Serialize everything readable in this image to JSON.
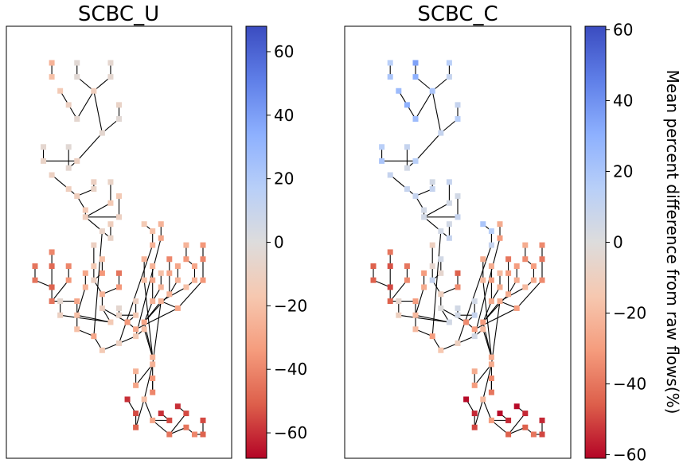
{
  "chart_data": [
    {
      "type": "scatter",
      "title": "SCBC_U",
      "xlabel": "",
      "ylabel": "",
      "grid": false,
      "colorbar": {
        "cmap": "coolwarm",
        "vmin": -68,
        "vmax": 68,
        "ticks": [
          -60,
          -40,
          -20,
          0,
          20,
          40,
          60
        ],
        "tick_labels": [
          "−60",
          "−40",
          "−20",
          "0",
          "20",
          "40",
          "60"
        ],
        "label": ""
      },
      "edges": [
        [
          "n1",
          "n2"
        ],
        [
          "n3",
          "n4"
        ],
        [
          "n5",
          "n6"
        ],
        [
          "n6",
          "n8"
        ],
        [
          "n4",
          "n8"
        ],
        [
          "n7",
          "n9"
        ],
        [
          "n9",
          "n10"
        ],
        [
          "n10",
          "n8"
        ],
        [
          "n8",
          "n13"
        ],
        [
          "n11",
          "n12"
        ],
        [
          "n12",
          "n13"
        ],
        [
          "n14",
          "n15"
        ],
        [
          "n15",
          "n16"
        ],
        [
          "n16",
          "n13"
        ],
        [
          "n17",
          "n18"
        ],
        [
          "n18",
          "n16"
        ],
        [
          "n19",
          "n20"
        ],
        [
          "n20",
          "n22"
        ],
        [
          "n21",
          "n23"
        ],
        [
          "n23",
          "n22"
        ],
        [
          "n22",
          "n24"
        ],
        [
          "n24",
          "n25"
        ],
        [
          "n26",
          "n27"
        ],
        [
          "n27",
          "n25"
        ],
        [
          "n28",
          "n29"
        ],
        [
          "n29",
          "n25"
        ],
        [
          "n25",
          "n30"
        ],
        [
          "n31",
          "n32"
        ],
        [
          "n32",
          "n30"
        ],
        [
          "n33",
          "n34"
        ],
        [
          "n35",
          "n36"
        ],
        [
          "n36",
          "n37"
        ],
        [
          "n34",
          "n37"
        ],
        [
          "n37",
          "n38"
        ],
        [
          "n39",
          "n40"
        ],
        [
          "n40",
          "n38"
        ],
        [
          "n38",
          "n41"
        ],
        [
          "n41",
          "n42"
        ],
        [
          "n43",
          "n44"
        ],
        [
          "n44",
          "n42"
        ],
        [
          "n45",
          "n46"
        ],
        [
          "n46",
          "n47"
        ],
        [
          "n48",
          "n49"
        ],
        [
          "n49",
          "n47"
        ],
        [
          "n47",
          "n50"
        ],
        [
          "n51",
          "n52"
        ],
        [
          "n52",
          "n50"
        ],
        [
          "n50",
          "n53"
        ],
        [
          "n54",
          "n55"
        ],
        [
          "n56",
          "n57"
        ],
        [
          "n57",
          "n55"
        ],
        [
          "n55",
          "n58"
        ],
        [
          "n58",
          "n53"
        ],
        [
          "n53",
          "n59"
        ],
        [
          "n60",
          "n61"
        ],
        [
          "n61",
          "n59"
        ],
        [
          "n59",
          "n42"
        ],
        [
          "n42",
          "n62"
        ],
        [
          "n62",
          "n63"
        ],
        [
          "n30",
          "n63"
        ],
        [
          "n63",
          "n64"
        ],
        [
          "n64",
          "n65"
        ],
        [
          "n66",
          "n67"
        ],
        [
          "n67",
          "n68"
        ],
        [
          "n68",
          "n65"
        ],
        [
          "n65",
          "n69"
        ],
        [
          "n70",
          "n71"
        ],
        [
          "n71",
          "n69"
        ],
        [
          "n69",
          "n72"
        ],
        [
          "n72",
          "n73"
        ],
        [
          "n74",
          "n75"
        ],
        [
          "n75",
          "n73"
        ],
        [
          "n76",
          "n77"
        ],
        [
          "n77",
          "n78"
        ],
        [
          "n79",
          "n80"
        ],
        [
          "n80",
          "n78"
        ],
        [
          "n78",
          "n81"
        ],
        [
          "n73",
          "n81"
        ],
        [
          "n82",
          "n83"
        ],
        [
          "n83",
          "n84"
        ],
        [
          "n84",
          "n81"
        ],
        [
          "n85",
          "n86"
        ],
        [
          "n86",
          "n84"
        ],
        [
          "n87",
          "n88"
        ],
        [
          "n88",
          "n89"
        ],
        [
          "n89",
          "n90"
        ],
        [
          "n90",
          "n91"
        ],
        [
          "n91",
          "n92"
        ],
        [
          "n93",
          "n94"
        ],
        [
          "n94",
          "n95"
        ],
        [
          "n95",
          "n96"
        ],
        [
          "n96",
          "n92"
        ],
        [
          "n97",
          "n98"
        ],
        [
          "n98",
          "n96"
        ],
        [
          "n81",
          "n92"
        ],
        [
          "n92",
          "n99"
        ],
        [
          "n100",
          "n101"
        ],
        [
          "n101",
          "n99"
        ],
        [
          "n102",
          "n103"
        ],
        [
          "n103",
          "n99"
        ],
        [
          "n99",
          "n104"
        ],
        [
          "n105",
          "n106"
        ],
        [
          "n106",
          "n107"
        ],
        [
          "n107",
          "n104"
        ],
        [
          "n104",
          "n108"
        ],
        [
          "n109",
          "n110"
        ],
        [
          "n110",
          "n108"
        ],
        [
          "n108",
          "n111"
        ],
        [
          "n112",
          "n113"
        ],
        [
          "n113",
          "n111"
        ],
        [
          "n111",
          "n114"
        ],
        [
          "n114",
          "n115"
        ],
        [
          "n116",
          "n117"
        ],
        [
          "n117",
          "n115"
        ]
      ],
      "nodes": {
        "n1": {
          "x": 1.5,
          "y": 52.5,
          "v": -25
        },
        "n2": {
          "x": 1.5,
          "y": 51.5,
          "v": -20
        },
        "n3": {
          "x": 3.0,
          "y": 52.5,
          "v": -3
        },
        "n4": {
          "x": 3.0,
          "y": 51.5,
          "v": -3
        },
        "n5": {
          "x": 5.0,
          "y": 52.5,
          "v": -5
        },
        "n6": {
          "x": 5.0,
          "y": 51.5,
          "v": -5
        },
        "n7": {
          "x": 2.0,
          "y": 50.5,
          "v": -15
        },
        "n8": {
          "x": 4.0,
          "y": 50.5,
          "v": -12
        },
        "n9": {
          "x": 2.5,
          "y": 49.5,
          "v": -10
        },
        "n10": {
          "x": 3.0,
          "y": 48.5,
          "v": -5
        },
        "n11": {
          "x": 5.5,
          "y": 49.5,
          "v": -8
        },
        "n12": {
          "x": 5.5,
          "y": 48.5,
          "v": -3
        },
        "n13": {
          "x": 4.5,
          "y": 47.5,
          "v": -5
        },
        "n14": {
          "x": 1.0,
          "y": 46.5,
          "v": -5
        },
        "n15": {
          "x": 1.0,
          "y": 45.5,
          "v": -8
        },
        "n16": {
          "x": 3.0,
          "y": 45.5,
          "v": -10
        },
        "n17": {
          "x": 2.5,
          "y": 46.5,
          "v": -3
        },
        "n18": {
          "x": 2.5,
          "y": 45.0,
          "v": -5
        },
        "n19": {
          "x": 1.5,
          "y": 44.5,
          "v": -10
        },
        "n20": {
          "x": 2.5,
          "y": 43.5,
          "v": -12
        },
        "n21": {
          "x": 4.0,
          "y": 44.0,
          "v": -10
        },
        "n22": {
          "x": 3.0,
          "y": 43.0,
          "v": -12
        },
        "n23": {
          "x": 4.0,
          "y": 43.5,
          "v": -8
        },
        "n24": {
          "x": 3.5,
          "y": 42.0,
          "v": -15
        },
        "n25": {
          "x": 3.5,
          "y": 41.5,
          "v": -12
        },
        "n26": {
          "x": 5.0,
          "y": 44.0,
          "v": -8
        },
        "n27": {
          "x": 5.0,
          "y": 42.5,
          "v": -15
        },
        "n28": {
          "x": 5.5,
          "y": 43.0,
          "v": -15
        },
        "n29": {
          "x": 5.5,
          "y": 41.5,
          "v": -10
        },
        "n30": {
          "x": 4.5,
          "y": 40.5,
          "v": -8
        },
        "n31": {
          "x": 5.0,
          "y": 41.0,
          "v": -12
        },
        "n32": {
          "x": 5.0,
          "y": 40.0,
          "v": -8
        },
        "n33": {
          "x": 0.5,
          "y": 38.0,
          "v": -45
        },
        "n34": {
          "x": 0.5,
          "y": 37.0,
          "v": -45
        },
        "n35": {
          "x": 1.5,
          "y": 39.0,
          "v": -40
        },
        "n36": {
          "x": 1.5,
          "y": 38.0,
          "v": -48
        },
        "n37": {
          "x": 1.5,
          "y": 36.5,
          "v": -50
        },
        "n38": {
          "x": 1.5,
          "y": 35.5,
          "v": -45
        },
        "n39": {
          "x": 2.5,
          "y": 38.0,
          "v": -40
        },
        "n40": {
          "x": 2.5,
          "y": 37.0,
          "v": -35
        },
        "n41": {
          "x": 3.0,
          "y": 35.5,
          "v": -30
        },
        "n42": {
          "x": 3.0,
          "y": 34.5,
          "v": -20
        },
        "n43": {
          "x": 3.5,
          "y": 37.5,
          "v": -30
        },
        "n44": {
          "x": 3.5,
          "y": 36.5,
          "v": -25
        },
        "n45": {
          "x": 4.0,
          "y": 39.5,
          "v": -10
        },
        "n46": {
          "x": 4.0,
          "y": 38.0,
          "v": -15
        },
        "n47": {
          "x": 4.0,
          "y": 37.0,
          "v": -10
        },
        "n48": {
          "x": 4.5,
          "y": 38.5,
          "v": -20
        },
        "n49": {
          "x": 4.5,
          "y": 37.5,
          "v": -35
        },
        "n50": {
          "x": 4.5,
          "y": 36.0,
          "v": -25
        },
        "n51": {
          "x": 5.5,
          "y": 37.5,
          "v": -45
        },
        "n52": {
          "x": 5.5,
          "y": 36.5,
          "v": -35
        },
        "n53": {
          "x": 4.5,
          "y": 35.0,
          "v": -10
        },
        "n54": {
          "x": 6.5,
          "y": 35.5,
          "v": -10
        },
        "n55": {
          "x": 6.5,
          "y": 34.5,
          "v": -15
        },
        "n56": {
          "x": 5.5,
          "y": 35.0,
          "v": -5
        },
        "n57": {
          "x": 5.5,
          "y": 34.5,
          "v": -8
        },
        "n58": {
          "x": 6.0,
          "y": 34.0,
          "v": -5
        },
        "n59": {
          "x": 5.0,
          "y": 34.0,
          "v": -15
        },
        "n60": {
          "x": 2.0,
          "y": 35.5,
          "v": -5
        },
        "n61": {
          "x": 2.0,
          "y": 34.5,
          "v": -10
        },
        "n62": {
          "x": 3.0,
          "y": 33.5,
          "v": -20
        },
        "n63": {
          "x": 4.0,
          "y": 33.0,
          "v": -30
        },
        "n64": {
          "x": 4.5,
          "y": 32.0,
          "v": -15
        },
        "n65": {
          "x": 5.5,
          "y": 32.5,
          "v": -10
        },
        "n66": {
          "x": 7.0,
          "y": 41.0,
          "v": -15
        },
        "n67": {
          "x": 7.5,
          "y": 40.5,
          "v": -20
        },
        "n68": {
          "x": 7.5,
          "y": 39.5,
          "v": -25
        },
        "n69": {
          "x": 6.5,
          "y": 33.0,
          "v": -15
        },
        "n70": {
          "x": 8.0,
          "y": 41.0,
          "v": -25
        },
        "n71": {
          "x": 8.0,
          "y": 40.0,
          "v": -30
        },
        "n72": {
          "x": 7.0,
          "y": 33.5,
          "v": -20
        },
        "n73": {
          "x": 7.5,
          "y": 31.5,
          "v": -25
        },
        "n74": {
          "x": 7.0,
          "y": 38.5,
          "v": -25
        },
        "n75": {
          "x": 7.0,
          "y": 37.0,
          "v": -20
        },
        "n76": {
          "x": 7.5,
          "y": 38.0,
          "v": -25
        },
        "n77": {
          "x": 7.5,
          "y": 37.0,
          "v": -30
        },
        "n78": {
          "x": 7.5,
          "y": 35.5,
          "v": -25
        },
        "n79": {
          "x": 8.0,
          "y": 37.5,
          "v": -20
        },
        "n80": {
          "x": 8.0,
          "y": 36.5,
          "v": -25
        },
        "n81": {
          "x": 7.0,
          "y": 34.0,
          "v": -30
        },
        "n82": {
          "x": 8.5,
          "y": 38.5,
          "v": -40
        },
        "n83": {
          "x": 8.5,
          "y": 37.5,
          "v": -30
        },
        "n84": {
          "x": 8.5,
          "y": 36.0,
          "v": -25
        },
        "n85": {
          "x": 9.0,
          "y": 38.0,
          "v": -30
        },
        "n86": {
          "x": 9.0,
          "y": 37.0,
          "v": -25
        },
        "n87": {
          "x": 9.5,
          "y": 39.5,
          "v": -25
        },
        "n88": {
          "x": 9.5,
          "y": 38.5,
          "v": -35
        },
        "n89": {
          "x": 10.0,
          "y": 38.0,
          "v": -30
        },
        "n90": {
          "x": 10.0,
          "y": 37.0,
          "v": -25
        },
        "n91": {
          "x": 9.5,
          "y": 36.5,
          "v": -20
        },
        "n92": {
          "x": 8.0,
          "y": 35.5,
          "v": -25
        },
        "n93": {
          "x": 10.5,
          "y": 39.5,
          "v": -35
        },
        "n94": {
          "x": 10.5,
          "y": 38.5,
          "v": -40
        },
        "n95": {
          "x": 10.5,
          "y": 37.0,
          "v": -35
        },
        "n96": {
          "x": 9.0,
          "y": 35.0,
          "v": -30
        },
        "n97": {
          "x": 6.0,
          "y": 34.0,
          "v": -35
        },
        "n98": {
          "x": 6.5,
          "y": 33.5,
          "v": -30
        },
        "n99": {
          "x": 7.5,
          "y": 31.0,
          "v": -25
        },
        "n100": {
          "x": 6.5,
          "y": 30.5,
          "v": -25
        },
        "n101": {
          "x": 6.5,
          "y": 29.5,
          "v": -30
        },
        "n102": {
          "x": 7.5,
          "y": 30.0,
          "v": -35
        },
        "n103": {
          "x": 7.5,
          "y": 29.0,
          "v": -40
        },
        "n104": {
          "x": 7.0,
          "y": 28.5,
          "v": -20
        },
        "n105": {
          "x": 6.0,
          "y": 28.5,
          "v": -60
        },
        "n106": {
          "x": 6.5,
          "y": 27.5,
          "v": -55
        },
        "n107": {
          "x": 6.5,
          "y": 26.5,
          "v": -50
        },
        "n108": {
          "x": 7.5,
          "y": 27.0,
          "v": -30
        },
        "n109": {
          "x": 8.0,
          "y": 27.5,
          "v": -60
        },
        "n110": {
          "x": 8.5,
          "y": 27.0,
          "v": -55
        },
        "n111": {
          "x": 8.5,
          "y": 26.0,
          "v": -45
        },
        "n112": {
          "x": 9.0,
          "y": 28.0,
          "v": -60
        },
        "n113": {
          "x": 9.5,
          "y": 27.5,
          "v": -55
        },
        "n114": {
          "x": 9.5,
          "y": 26.5,
          "v": -45
        },
        "n115": {
          "x": 10.0,
          "y": 26.0,
          "v": -40
        },
        "n116": {
          "x": 10.5,
          "y": 27.0,
          "v": -55
        },
        "n117": {
          "x": 10.5,
          "y": 26.0,
          "v": -50
        }
      }
    },
    {
      "type": "scatter",
      "title": "SCBC_C",
      "xlabel": "",
      "ylabel": "",
      "grid": false,
      "colorbar": {
        "cmap": "coolwarm",
        "vmin": -61,
        "vmax": 61,
        "ticks": [
          -60,
          -40,
          -20,
          0,
          20,
          40,
          60
        ],
        "tick_labels": [
          "−60",
          "−40",
          "−20",
          "0",
          "20",
          "40",
          "60"
        ],
        "label": "Mean percent difference from raw flows(%)"
      },
      "same_network_as": 0,
      "values": {
        "n1": 15,
        "n2": 20,
        "n3": 35,
        "n4": 30,
        "n5": 15,
        "n6": 10,
        "n7": 25,
        "n8": 20,
        "n9": 30,
        "n10": 25,
        "n11": 10,
        "n12": 15,
        "n13": 10,
        "n14": 15,
        "n15": 20,
        "n16": 15,
        "n17": 10,
        "n18": 5,
        "n19": 10,
        "n20": 10,
        "n21": 5,
        "n22": 10,
        "n23": 10,
        "n24": 5,
        "n25": 5,
        "n26": 10,
        "n27": 5,
        "n28": 5,
        "n29": 10,
        "n30": 5,
        "n31": 5,
        "n32": 10,
        "n33": -45,
        "n34": -45,
        "n35": -40,
        "n36": -48,
        "n37": -50,
        "n38": -45,
        "n39": -40,
        "n40": -35,
        "n41": -30,
        "n42": -20,
        "n43": -30,
        "n44": -25,
        "n45": -10,
        "n46": -5,
        "n47": 10,
        "n48": 5,
        "n49": -5,
        "n50": -10,
        "n51": -45,
        "n52": -35,
        "n53": 0,
        "n54": 5,
        "n55": 10,
        "n56": 5,
        "n57": 5,
        "n58": 10,
        "n59": 5,
        "n60": -5,
        "n61": -10,
        "n62": -20,
        "n63": -30,
        "n64": -15,
        "n65": -10,
        "n66": 20,
        "n67": 15,
        "n68": 10,
        "n69": 5,
        "n70": -25,
        "n71": -30,
        "n72": -20,
        "n73": -25,
        "n74": -25,
        "n75": -20,
        "n76": -25,
        "n77": -30,
        "n78": -25,
        "n79": -20,
        "n80": -25,
        "n81": -30,
        "n82": -40,
        "n83": -30,
        "n84": -25,
        "n85": -30,
        "n86": -25,
        "n87": -25,
        "n88": -35,
        "n89": -30,
        "n90": -25,
        "n91": -20,
        "n92": -25,
        "n93": -35,
        "n94": -40,
        "n95": -35,
        "n96": -30,
        "n97": -35,
        "n98": -30,
        "n99": -25,
        "n100": -25,
        "n101": -30,
        "n102": -35,
        "n103": -40,
        "n104": -20,
        "n105": -60,
        "n106": -55,
        "n107": -50,
        "n108": -30,
        "n109": -60,
        "n110": -55,
        "n111": -45,
        "n112": -60,
        "n113": -55,
        "n114": -45,
        "n115": -40,
        "n116": -55,
        "n117": -50
      }
    }
  ]
}
